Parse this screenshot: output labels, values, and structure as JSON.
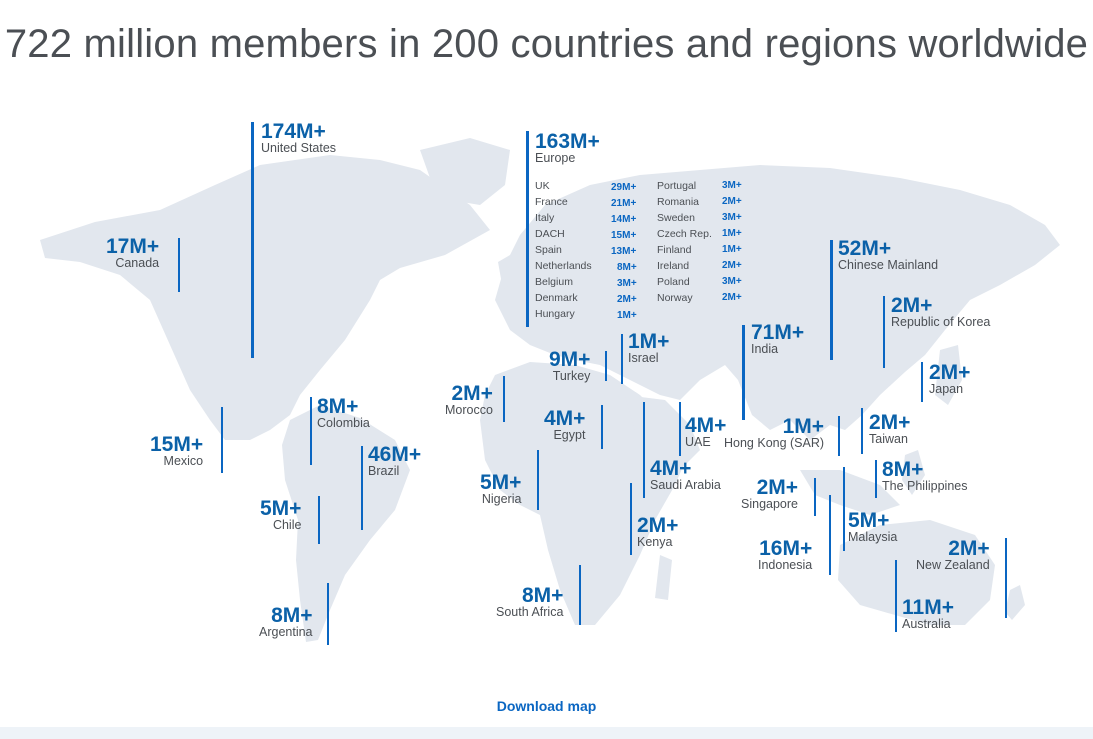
{
  "headline": "722 million members in 200 countries and regions worldwide",
  "regions": {
    "us": {
      "value": "174M+",
      "name": "United States"
    },
    "canada": {
      "value": "17M+",
      "name": "Canada"
    },
    "mexico": {
      "value": "15M+",
      "name": "Mexico"
    },
    "colombia": {
      "value": "8M+",
      "name": "Colombia"
    },
    "brazil": {
      "value": "46M+",
      "name": "Brazil"
    },
    "chile": {
      "value": "5M+",
      "name": "Chile"
    },
    "argentina": {
      "value": "8M+",
      "name": "Argentina"
    },
    "europe": {
      "value": "163M+",
      "name": "Europe"
    },
    "morocco": {
      "value": "2M+",
      "name": "Morocco"
    },
    "turkey": {
      "value": "9M+",
      "name": "Turkey"
    },
    "israel": {
      "value": "1M+",
      "name": "Israel"
    },
    "egypt": {
      "value": "4M+",
      "name": "Egypt"
    },
    "nigeria": {
      "value": "5M+",
      "name": "Nigeria"
    },
    "uae": {
      "value": "4M+",
      "name": "UAE"
    },
    "saudi": {
      "value": "4M+",
      "name": "Saudi Arabia"
    },
    "kenya": {
      "value": "2M+",
      "name": "Kenya"
    },
    "southafrica": {
      "value": "8M+",
      "name": "South Africa"
    },
    "india": {
      "value": "71M+",
      "name": "India"
    },
    "china": {
      "value": "52M+",
      "name": "Chinese Mainland"
    },
    "korea": {
      "value": "2M+",
      "name": "Republic of Korea"
    },
    "japan": {
      "value": "2M+",
      "name": "Japan"
    },
    "hongkong": {
      "value": "1M+",
      "name": "Hong Kong (SAR)"
    },
    "taiwan": {
      "value": "2M+",
      "name": "Taiwan"
    },
    "philippines": {
      "value": "8M+",
      "name": "The Philippines"
    },
    "singapore": {
      "value": "2M+",
      "name": "Singapore"
    },
    "malaysia": {
      "value": "5M+",
      "name": "Malaysia"
    },
    "indonesia": {
      "value": "16M+",
      "name": "Indonesia"
    },
    "newzealand": {
      "value": "2M+",
      "name": "New Zealand"
    },
    "australia": {
      "value": "11M+",
      "name": "Australia"
    }
  },
  "europe_breakdown": {
    "col1": [
      {
        "country": "UK",
        "value": "29M+"
      },
      {
        "country": "France",
        "value": "21M+"
      },
      {
        "country": "Italy",
        "value": "14M+"
      },
      {
        "country": "DACH",
        "value": "15M+"
      },
      {
        "country": "Spain",
        "value": "13M+"
      },
      {
        "country": "Netherlands",
        "value": "8M+"
      },
      {
        "country": "Belgium",
        "value": "3M+"
      },
      {
        "country": "Denmark",
        "value": "2M+"
      },
      {
        "country": "Hungary",
        "value": "1M+"
      }
    ],
    "col2": [
      {
        "country": "Portugal",
        "value": "3M+"
      },
      {
        "country": "Romania",
        "value": "2M+"
      },
      {
        "country": "Sweden",
        "value": "3M+"
      },
      {
        "country": "Czech Rep.",
        "value": "1M+"
      },
      {
        "country": "Finland",
        "value": "1M+"
      },
      {
        "country": "Ireland",
        "value": "2M+"
      },
      {
        "country": "Poland",
        "value": "3M+"
      },
      {
        "country": "Norway",
        "value": "2M+"
      }
    ]
  },
  "download_label": "Download map",
  "colors": {
    "accent": "#0a66c2",
    "number": "#0b61a8",
    "land": "#e2e7ee",
    "text": "#4b4f54"
  }
}
